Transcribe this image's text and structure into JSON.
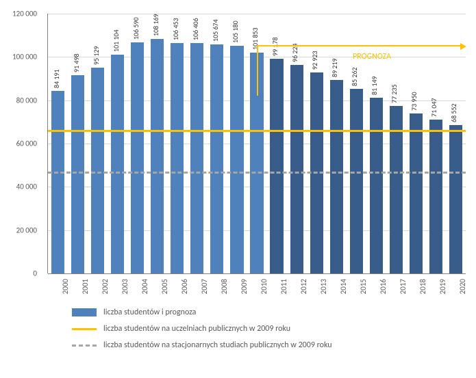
{
  "chart": {
    "type": "bar",
    "background_color": "#ffffff",
    "grid_color": "#d9d9d9",
    "axis_color": "#808080",
    "text_color": "#595959",
    "font_family": "Calibri, Arial, sans-serif",
    "label_fontsize": 11,
    "bar_label_fontsize": 10,
    "ylim": [
      0,
      120000
    ],
    "ytick_step": 20000,
    "bar_width": 0.66,
    "categories": [
      "2000",
      "2001",
      "2002",
      "2003",
      "2004",
      "2005",
      "2006",
      "2007",
      "2008",
      "2009",
      "2010",
      "2011",
      "2012",
      "2013",
      "2014",
      "2015",
      "2016",
      "2017",
      "2018",
      "2019",
      "2020"
    ],
    "values": [
      84191,
      91498,
      95129,
      101104,
      106590,
      108169,
      106453,
      106406,
      105674,
      105180,
      101853,
      99178,
      96224,
      92923,
      89219,
      85262,
      81149,
      77235,
      73950,
      71047,
      68552
    ],
    "value_labels": [
      "84 191",
      "91 498",
      "95 129",
      "101 104",
      "106 590",
      "108 169",
      "106 453",
      "106 406",
      "105 674",
      "105 180",
      "101 853",
      "99 178",
      "96 224",
      "92 923",
      "89 219",
      "85 262",
      "81 149",
      "77 235",
      "73 950",
      "71 047",
      "68 552"
    ],
    "bar_colors": [
      "#4f81bd",
      "#4f81bd",
      "#4f81bd",
      "#4f81bd",
      "#4f81bd",
      "#4f81bd",
      "#4f81bd",
      "#4f81bd",
      "#4f81bd",
      "#4f81bd",
      "#4f81bd",
      "#385d8a",
      "#385d8a",
      "#385d8a",
      "#385d8a",
      "#385d8a",
      "#385d8a",
      "#385d8a",
      "#385d8a",
      "#385d8a",
      "#385d8a"
    ],
    "y_ticks": [
      {
        "v": 0,
        "label": "0"
      },
      {
        "v": 20000,
        "label": "20 000"
      },
      {
        "v": 40000,
        "label": "40 000"
      },
      {
        "v": 60000,
        "label": "60 000"
      },
      {
        "v": 80000,
        "label": "80 000"
      },
      {
        "v": 100000,
        "label": "100 000"
      },
      {
        "v": 120000,
        "label": "120 000"
      }
    ],
    "ref_lines": [
      {
        "value": 66000,
        "color": "#ffc000",
        "width": 3,
        "dash": "solid"
      },
      {
        "value": 46500,
        "color": "#a6a6a6",
        "width": 3,
        "dash": "dashed"
      }
    ],
    "prognoza": {
      "start_index": 10.5,
      "label": "PROGNOZA",
      "color": "#ffc000",
      "line_width": 2
    },
    "legend": [
      {
        "type": "box",
        "color": "#4f81bd",
        "label": "liczba studentów i prognoza"
      },
      {
        "type": "line",
        "color": "#ffc000",
        "dash": "solid",
        "label": "liczba studentów na uczelniach publicznych w 2009 roku"
      },
      {
        "type": "line",
        "color": "#a6a6a6",
        "dash": "dashed",
        "label": "liczba studentów na stacjonarnych studiach publicznych w 2009 roku"
      }
    ]
  }
}
